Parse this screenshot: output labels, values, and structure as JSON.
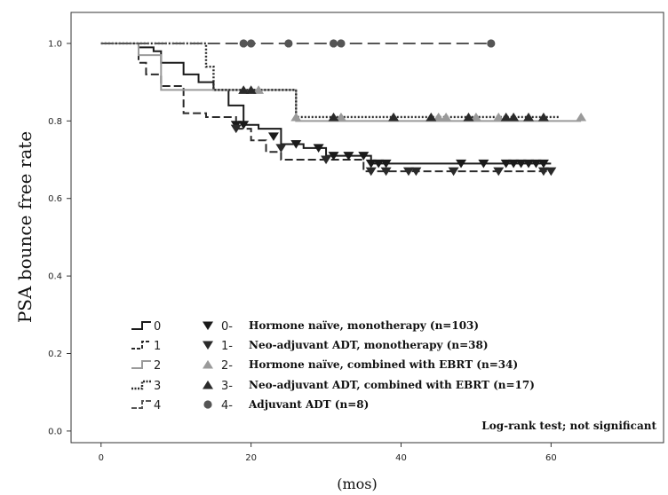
{
  "chart_data": {
    "type": "line",
    "title": "",
    "ylabel": "PSA bounce free rate",
    "xlabel": "(mos)",
    "xlim": [
      -4,
      75
    ],
    "ylim": [
      -0.03,
      1.08
    ],
    "xticks": [
      0,
      20,
      40,
      60
    ],
    "yticks": [
      0.0,
      0.2,
      0.4,
      0.6,
      0.8,
      1.0
    ],
    "ytick_labels": [
      "0.0",
      "0.2",
      "0.4",
      "0.6",
      "0.8",
      "1.0"
    ],
    "grid": false,
    "legend_position": "bottom-left",
    "annotation": "Log-rank test; not significant",
    "series": [
      {
        "name": "0",
        "legend_num": "0-",
        "legend_text": "Hormone naïve, monotherapy (n=103)",
        "color": "#1a1a1a",
        "dash": "solid",
        "marker": "triangle-down",
        "x": [
          0,
          5,
          7,
          8,
          11,
          13,
          15,
          17,
          19,
          21,
          24,
          27,
          30,
          33,
          36,
          60
        ],
        "y": [
          1.0,
          0.99,
          0.98,
          0.95,
          0.92,
          0.9,
          0.88,
          0.84,
          0.79,
          0.78,
          0.74,
          0.73,
          0.71,
          0.71,
          0.69,
          0.69
        ],
        "censor_x": [
          18,
          19,
          23,
          26,
          29,
          31,
          33,
          35,
          36,
          37,
          38,
          48,
          51,
          54,
          55,
          56,
          57,
          58,
          59
        ],
        "censor_y": [
          0.79,
          0.79,
          0.76,
          0.74,
          0.73,
          0.71,
          0.71,
          0.71,
          0.69,
          0.69,
          0.69,
          0.69,
          0.69,
          0.69,
          0.69,
          0.69,
          0.69,
          0.69,
          0.69
        ]
      },
      {
        "name": "1",
        "legend_num": "1-",
        "legend_text": "Neo-adjuvant ADT,  monotherapy (n=38)",
        "color": "#2a2a2a",
        "dash": "dash",
        "marker": "triangle-down",
        "x": [
          0,
          5,
          6,
          8,
          11,
          14,
          18,
          20,
          22,
          24,
          29,
          35,
          60
        ],
        "y": [
          1.0,
          0.95,
          0.92,
          0.89,
          0.82,
          0.81,
          0.78,
          0.75,
          0.72,
          0.7,
          0.7,
          0.67,
          0.67
        ],
        "censor_x": [
          18,
          24,
          30,
          36,
          38,
          41,
          42,
          47,
          53,
          59,
          60
        ],
        "censor_y": [
          0.78,
          0.73,
          0.7,
          0.67,
          0.67,
          0.67,
          0.67,
          0.67,
          0.67,
          0.67,
          0.67
        ]
      },
      {
        "name": "2",
        "legend_num": "2-",
        "legend_text": "Hormone naïve, combined with EBRT (n=34)",
        "color": "#9a9a9a",
        "dash": "solid",
        "marker": "triangle-up",
        "x": [
          0,
          5,
          8,
          14,
          16,
          26,
          64
        ],
        "y": [
          1.0,
          0.97,
          0.88,
          0.88,
          0.88,
          0.8,
          0.8
        ],
        "censor_x": [
          21,
          26,
          32,
          39,
          45,
          46,
          50,
          53,
          64
        ],
        "censor_y": [
          0.88,
          0.81,
          0.81,
          0.81,
          0.81,
          0.81,
          0.81,
          0.81,
          0.81
        ]
      },
      {
        "name": "3",
        "legend_num": "3-",
        "legend_text": "Neo-adjuvant ADT, combined with EBRT (n=17)",
        "color": "#2a2a2a",
        "dash": "dot",
        "marker": "triangle-up",
        "x": [
          0,
          14,
          15,
          26,
          61
        ],
        "y": [
          1.0,
          0.94,
          0.88,
          0.81,
          0.81
        ],
        "censor_x": [
          19,
          20,
          31,
          39,
          44,
          49,
          54,
          55,
          57,
          59
        ],
        "censor_y": [
          0.88,
          0.88,
          0.81,
          0.81,
          0.81,
          0.81,
          0.81,
          0.81,
          0.81,
          0.81
        ]
      },
      {
        "name": "4",
        "legend_num": "4-",
        "legend_text": "Adjuvant ADT (n=8)",
        "color": "#555555",
        "dash": "longdash",
        "marker": "circle",
        "x": [
          0,
          52
        ],
        "y": [
          1.0,
          1.0
        ],
        "censor_x": [
          19,
          20,
          25,
          31,
          32,
          52
        ],
        "censor_y": [
          1.0,
          1.0,
          1.0,
          1.0,
          1.0,
          1.0
        ]
      }
    ]
  }
}
